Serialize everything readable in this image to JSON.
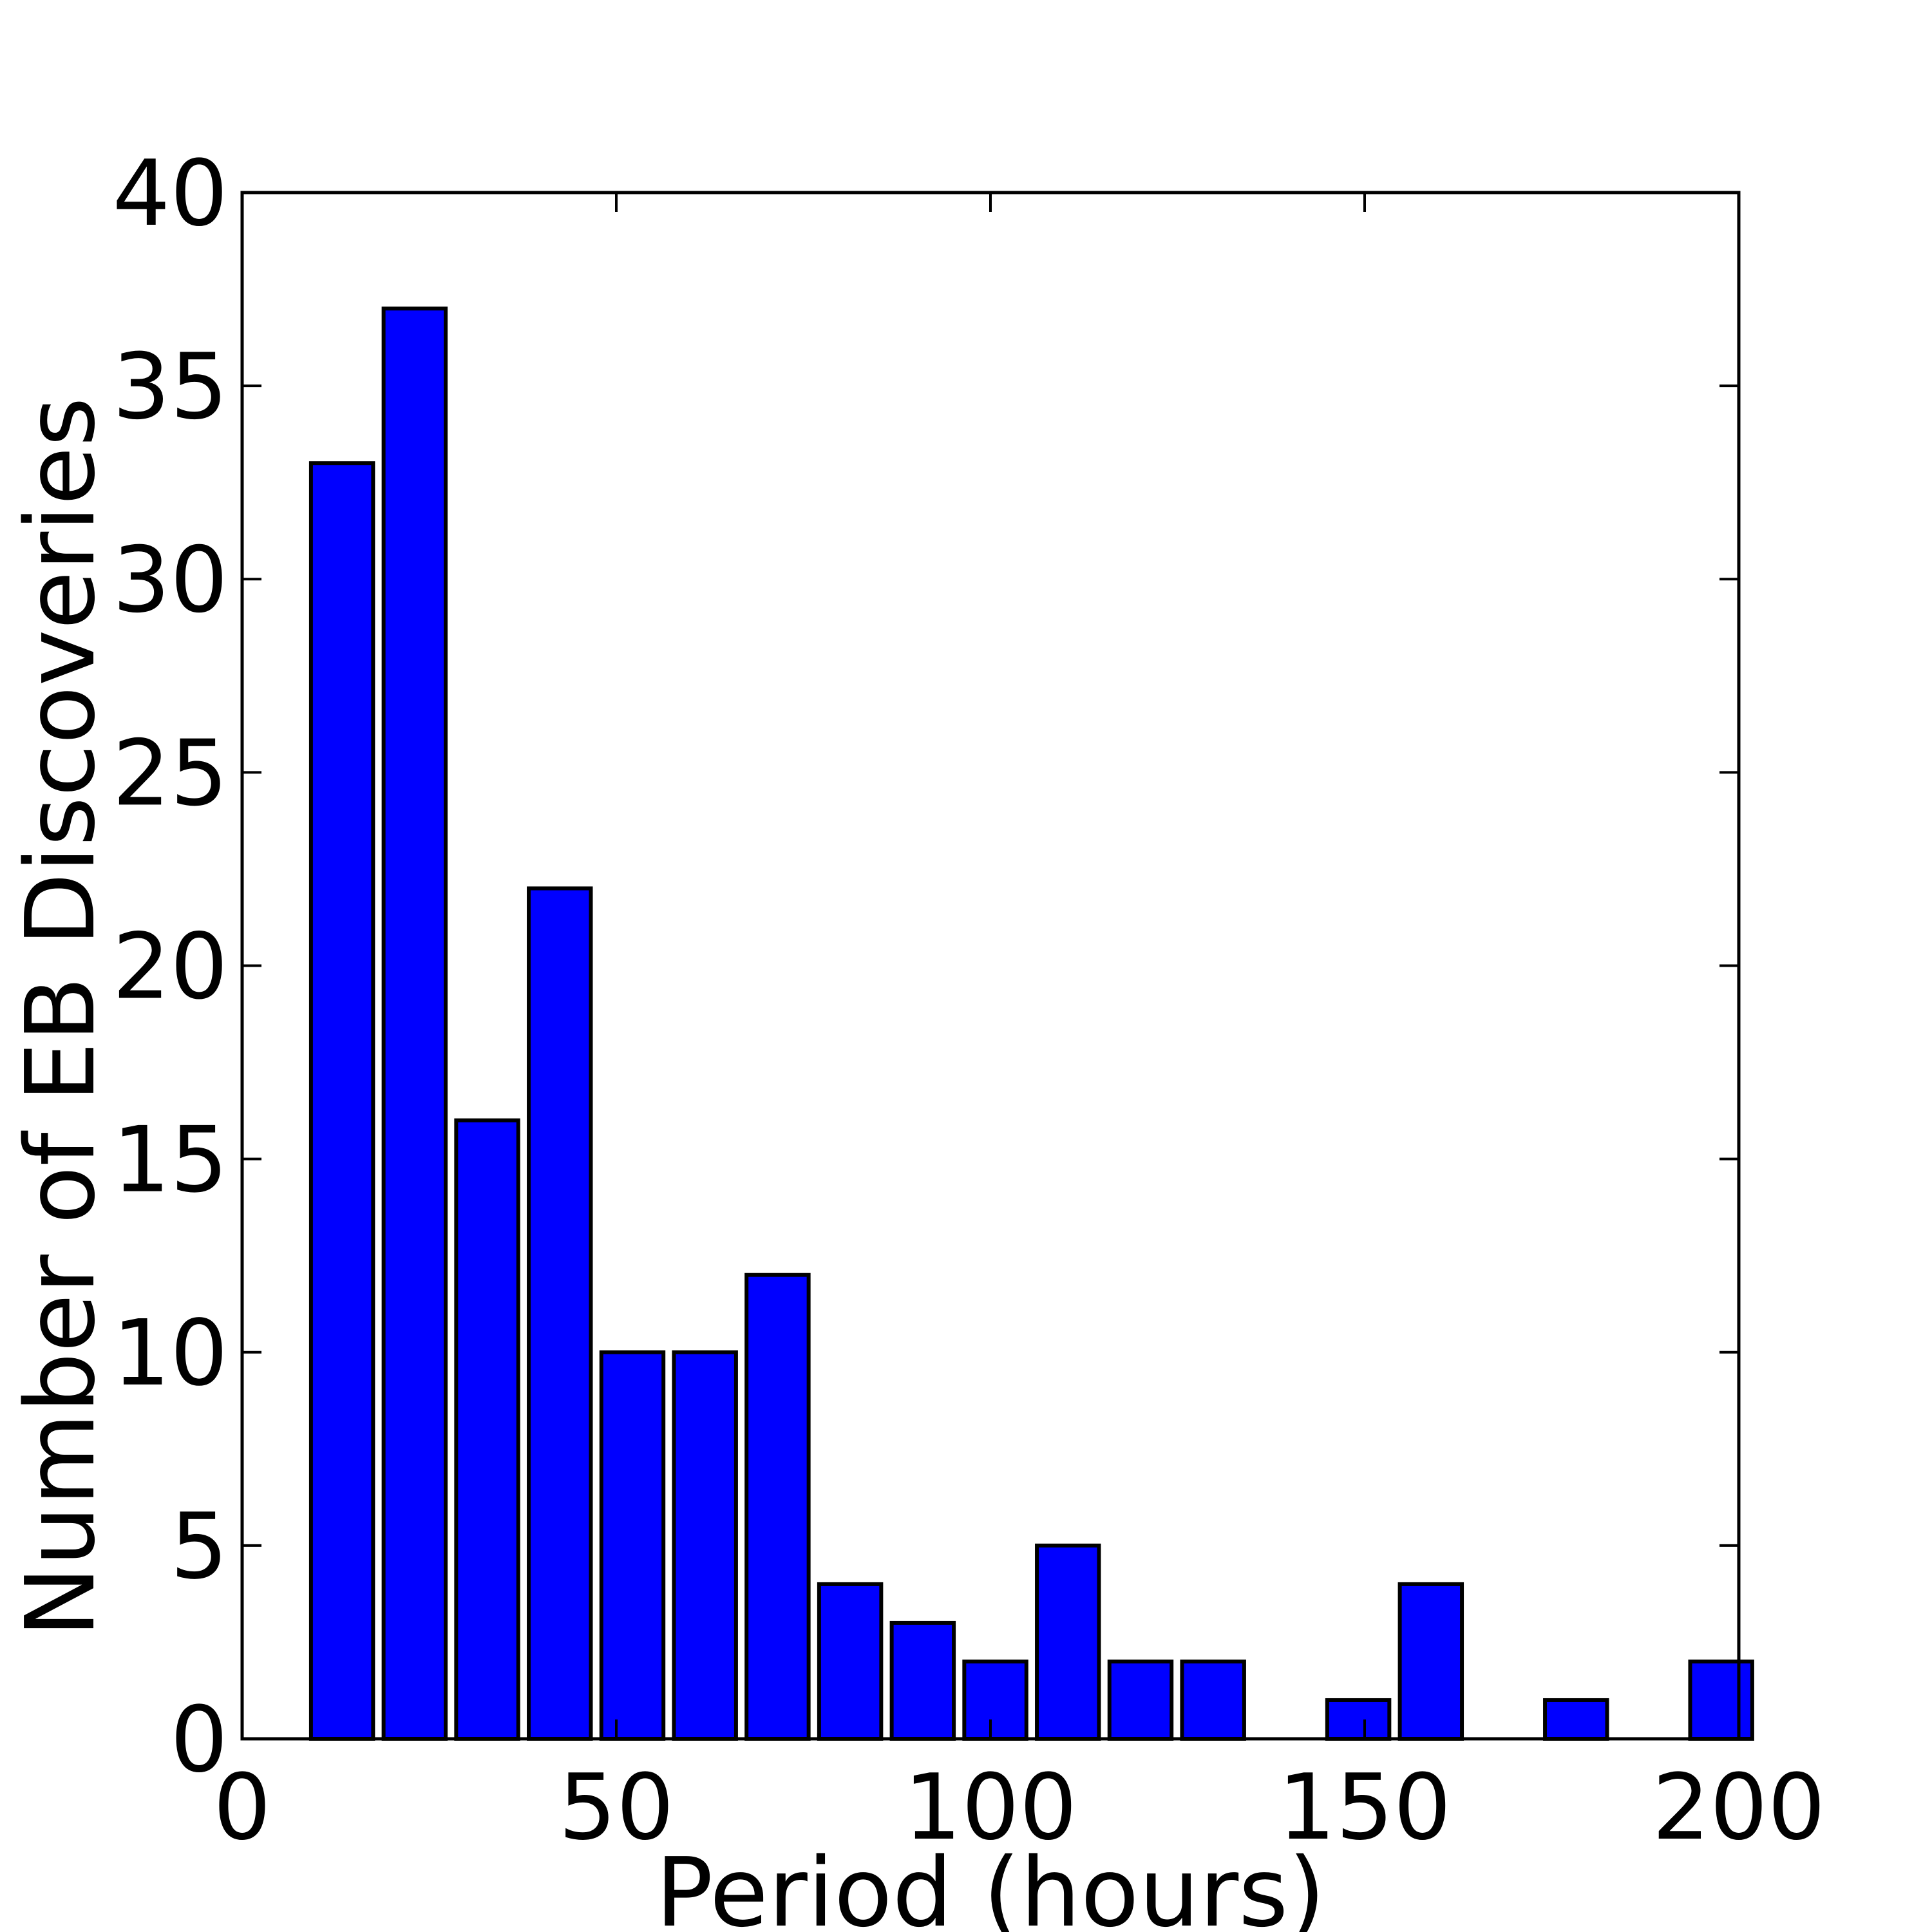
{
  "chart_data": {
    "type": "bar",
    "title": "",
    "xlabel": "Period (hours)",
    "ylabel": "Number of EB Discoveries",
    "xlim": [
      0,
      200
    ],
    "ylim": [
      0,
      40
    ],
    "xticks": [
      0,
      50,
      100,
      150,
      200
    ],
    "yticks": [
      0,
      5,
      10,
      15,
      20,
      25,
      30,
      35,
      40
    ],
    "xtick_labels": [
      "0",
      "50",
      "100",
      "150",
      "200"
    ],
    "ytick_labels": [
      "0",
      "5",
      "10",
      "15",
      "20",
      "25",
      "30",
      "35",
      "40"
    ],
    "bar_width": 8.3,
    "grid": false,
    "bars": [
      {
        "x": 9.2,
        "value": 33
      },
      {
        "x": 18.9,
        "value": 37
      },
      {
        "x": 28.6,
        "value": 16
      },
      {
        "x": 38.3,
        "value": 22
      },
      {
        "x": 48.0,
        "value": 10
      },
      {
        "x": 57.7,
        "value": 10
      },
      {
        "x": 67.4,
        "value": 12
      },
      {
        "x": 77.1,
        "value": 4
      },
      {
        "x": 86.8,
        "value": 3
      },
      {
        "x": 96.5,
        "value": 2
      },
      {
        "x": 106.2,
        "value": 5
      },
      {
        "x": 115.9,
        "value": 2
      },
      {
        "x": 125.6,
        "value": 2
      },
      {
        "x": 135.3,
        "value": 0
      },
      {
        "x": 145.0,
        "value": 1
      },
      {
        "x": 154.7,
        "value": 4
      },
      {
        "x": 164.4,
        "value": 0
      },
      {
        "x": 174.1,
        "value": 1
      },
      {
        "x": 183.8,
        "value": 0
      },
      {
        "x": 193.5,
        "value": 2
      }
    ],
    "colors": {
      "bar_fill": "#0000ff",
      "bar_edge": "#000000",
      "axes": "#000000"
    }
  }
}
